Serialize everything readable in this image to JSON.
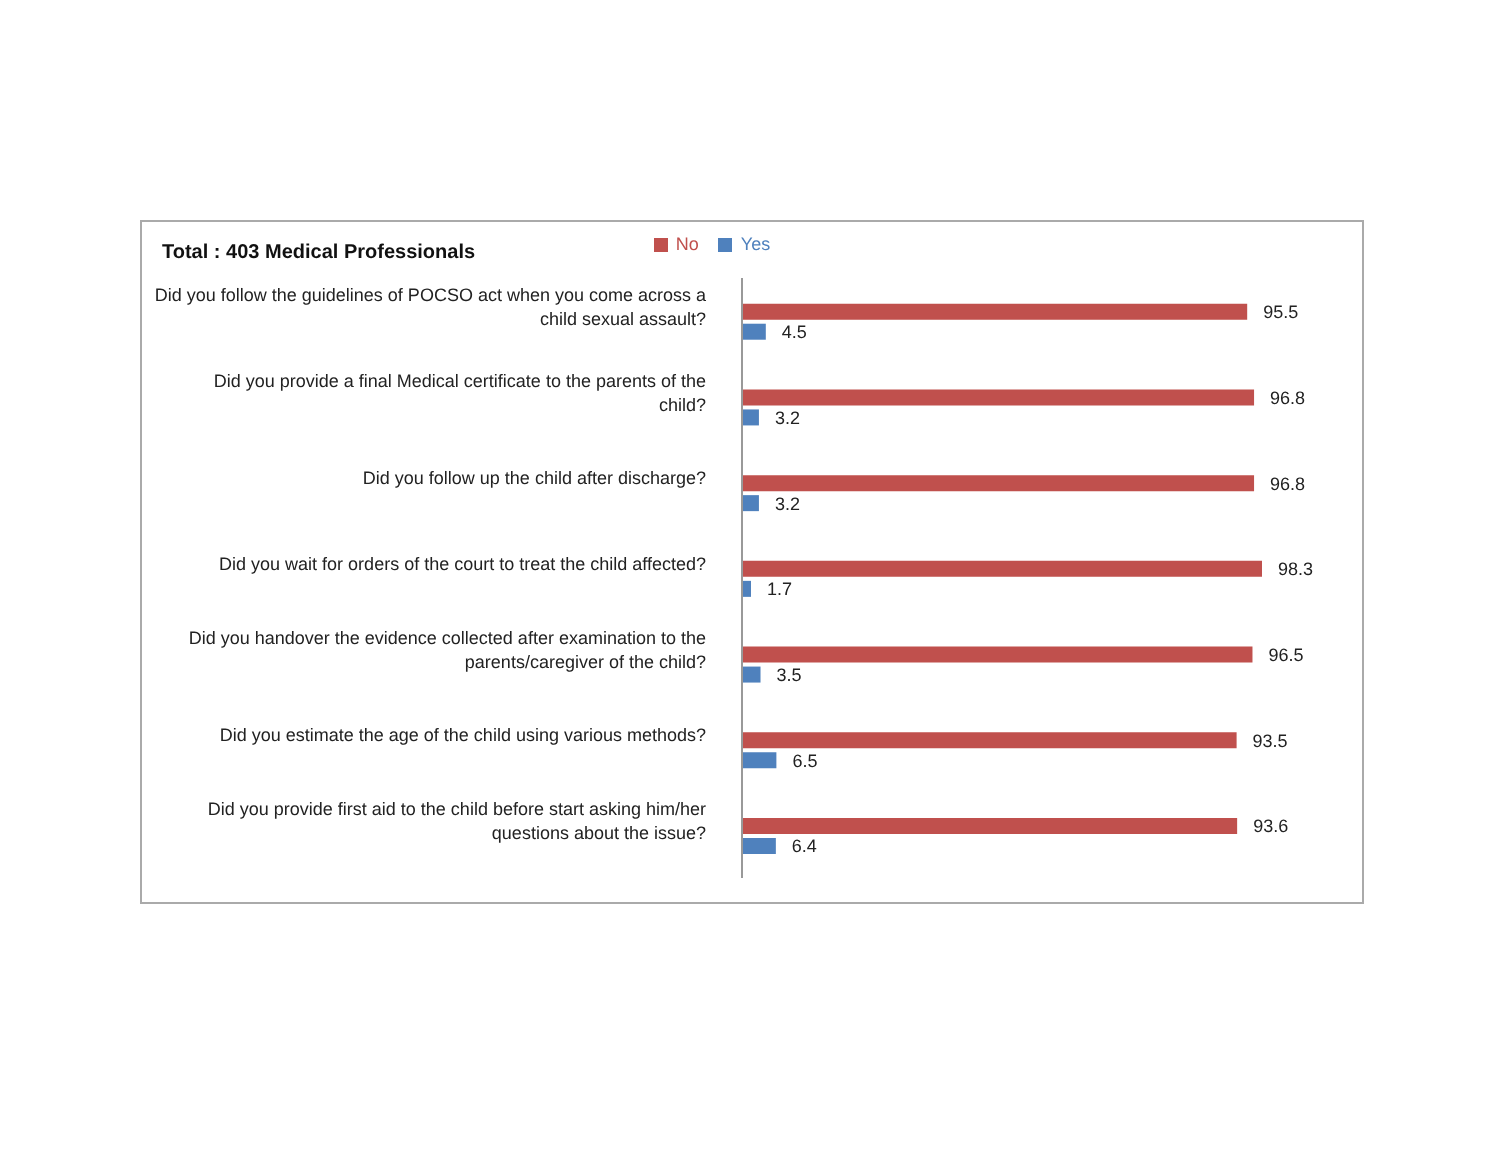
{
  "chart_data": {
    "type": "bar",
    "orientation": "horizontal",
    "title": "Total : 403 Medical Professionals",
    "categories": [
      "Did you follow the guidelines of POCSO act when you come across a child sexual assault?",
      "Did you provide a final Medical certificate to the parents of the child?",
      "Did you follow up the child after discharge?",
      "Did you wait for orders of the court to treat the child affected?",
      "Did you handover the evidence collected after examination to the parents/caregiver of the child?",
      "Did you estimate the age of the child using various methods?",
      "Did you provide first aid to the child before start asking him/her questions about the issue?"
    ],
    "series": [
      {
        "name": "No",
        "color": "#c0504d",
        "values": [
          95.5,
          96.8,
          96.8,
          98.3,
          96.5,
          93.5,
          93.6
        ]
      },
      {
        "name": "Yes",
        "color": "#4f81bd",
        "values": [
          4.5,
          3.2,
          3.2,
          1.7,
          3.5,
          6.5,
          6.4
        ]
      }
    ],
    "data_labels": true,
    "legend": "top",
    "grid": false,
    "tick_labels": "y"
  }
}
